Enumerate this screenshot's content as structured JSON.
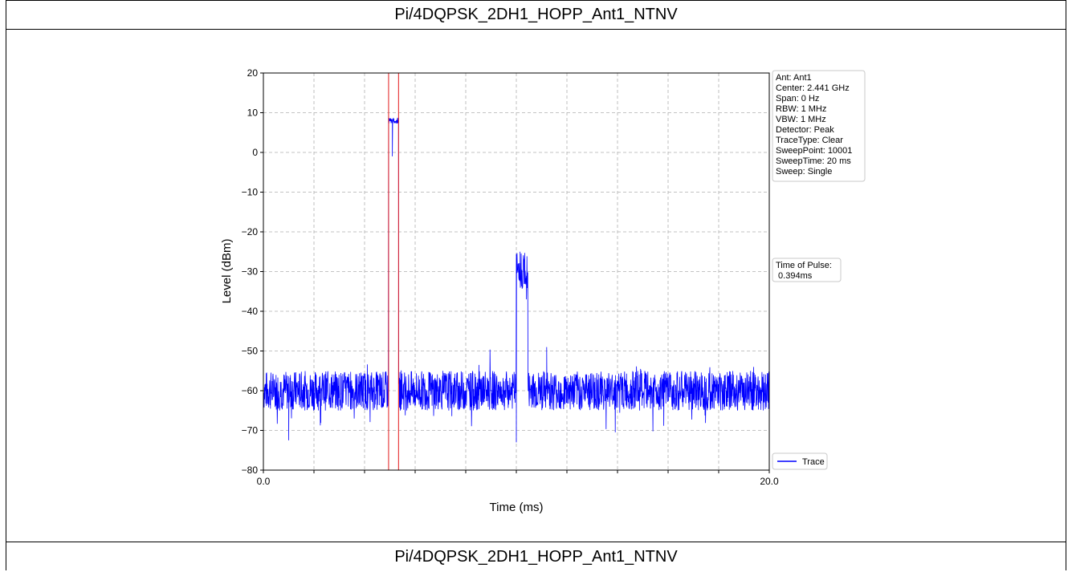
{
  "header": {
    "title": "Pi/4DQPSK_2DH1_HOPP_Ant1_NTNV"
  },
  "footer": {
    "title": "Pi/4DQPSK_2DH1_HOPP_Ant1_NTNV"
  },
  "colors": {
    "trace": "#0000ff",
    "marker": "#e31a1c",
    "grid": "#b0b0b0"
  },
  "info_box": {
    "lines": [
      "Ant: Ant1",
      "Center: 2.441 GHz",
      "Span: 0 Hz",
      "RBW: 1 MHz",
      "VBW: 1 MHz",
      "Detector: Peak",
      "TraceType: Clear",
      "SweepPoint: 10001",
      "SweepTime: 20 ms",
      "Sweep: Single"
    ]
  },
  "pulse_box": {
    "lines": [
      "Time of Pulse:",
      " 0.394ms"
    ]
  },
  "chart_data": {
    "type": "line",
    "title": "",
    "xlabel": "Time (ms)",
    "ylabel": "Level (dBm)",
    "xlim": [
      0.0,
      20.0
    ],
    "ylim": [
      -80,
      20
    ],
    "x_tick_labels": [
      "0.0",
      "20.0"
    ],
    "x_minor_ticks": [
      2,
      4,
      6,
      8,
      10,
      12,
      14,
      16,
      18
    ],
    "y_ticks": [
      20,
      10,
      0,
      -10,
      -20,
      -30,
      -40,
      -50,
      -60,
      -70,
      -80
    ],
    "grid": true,
    "legend": {
      "entries": [
        "Trace"
      ],
      "placement": "lower-right"
    },
    "markers": {
      "name": "Time of Pulse",
      "x": [
        4.95,
        5.344
      ]
    },
    "series": [
      {
        "name": "Trace",
        "noise_floor_dBm": -60,
        "segments": [
          {
            "x_start": 4.95,
            "x_end": 5.344,
            "level_dBm": 8
          },
          {
            "x_start": 10.0,
            "x_end": 10.45,
            "level_dBm": -30
          }
        ],
        "annotated_points": [
          {
            "x": 4.95,
            "y": 8.5
          },
          {
            "x": 5.1,
            "y": -1
          },
          {
            "x": 5.344,
            "y": 7.5
          },
          {
            "x": 10.0,
            "y": -73
          },
          {
            "x": 10.15,
            "y": -25
          },
          {
            "x": 10.4,
            "y": -37
          },
          {
            "x": 11.2,
            "y": -49
          },
          {
            "x": 1.0,
            "y": -72.5
          },
          {
            "x": 20.0,
            "y": -48.5
          }
        ]
      }
    ]
  }
}
